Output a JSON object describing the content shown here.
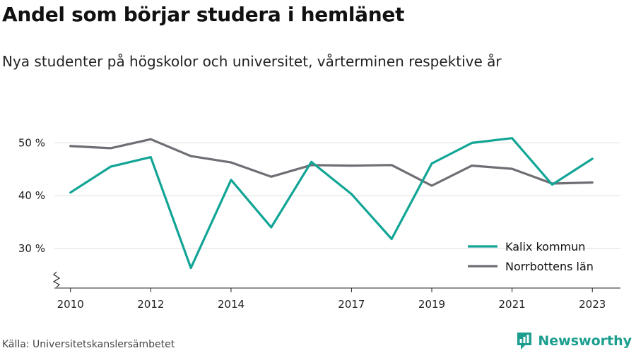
{
  "title": "Andel som börjar studera i hemlänet",
  "subtitle": "Nya studenter på högskolor och universitet, vårterminen respektive år",
  "source": "Källa: Universitetskanslersämbetet",
  "brand": {
    "name": "Newsworthy",
    "icon": "newsworthy-logo-icon",
    "color": "#1b9e8f"
  },
  "colors": {
    "kalix": "#12a596",
    "norrbotten": "#6e6e74",
    "grid": "#dddddd",
    "axis": "#222222"
  },
  "chart_data": {
    "type": "line",
    "x": [
      2010,
      2011,
      2012,
      2013,
      2014,
      2015,
      2016,
      2017,
      2018,
      2019,
      2020,
      2021,
      2022,
      2023
    ],
    "x_ticks": [
      2010,
      2012,
      2014,
      2017,
      2019,
      2021,
      2023
    ],
    "x_tick_labels": [
      "2010",
      "2012",
      "2014",
      "2017",
      "2019",
      "2021",
      "2023"
    ],
    "y_ticks": [
      30,
      40,
      50
    ],
    "y_tick_labels": [
      "30 %",
      "40 %",
      "50 %"
    ],
    "ylim": [
      22.5,
      53
    ],
    "xlim": [
      2009.6,
      2023.7
    ],
    "y_axis_break": true,
    "grid": true,
    "legend_position": "bottom-right",
    "series": [
      {
        "name": "Kalix kommun",
        "color": "#12a596",
        "values": [
          40.6,
          45.5,
          47.3,
          26.3,
          43.0,
          34.0,
          46.4,
          40.3,
          31.8,
          46.1,
          50.0,
          50.9,
          42.1,
          47.0
        ]
      },
      {
        "name": "Norrbottens län",
        "color": "#6e6e74",
        "values": [
          49.4,
          49.0,
          50.7,
          47.5,
          46.3,
          43.6,
          45.8,
          45.7,
          45.8,
          41.9,
          45.7,
          45.1,
          42.3,
          42.5
        ]
      }
    ]
  }
}
